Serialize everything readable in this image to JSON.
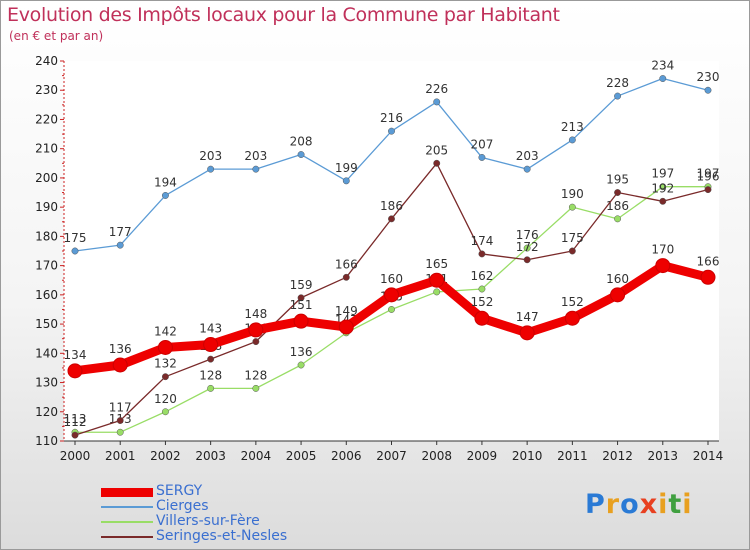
{
  "title": "Evolution des Impôts locaux pour la Commune par Habitant",
  "subtitle": "(en € et par an)",
  "logo": {
    "text": "Proxiti",
    "letters": [
      "P",
      "r",
      "o",
      "x",
      "i",
      "t",
      "i"
    ],
    "colors": [
      "#2a7ad5",
      "#e8a020",
      "#2a7ad5",
      "#e84020",
      "#e8a020",
      "#40a040",
      "#e8a020"
    ]
  },
  "chart_data": {
    "type": "line",
    "x": [
      "2000",
      "2001",
      "2002",
      "2003",
      "2004",
      "2005",
      "2006",
      "2007",
      "2008",
      "2009",
      "2010",
      "2011",
      "2012",
      "2013",
      "2014"
    ],
    "ylim": [
      110,
      240
    ],
    "yticks": [
      110,
      120,
      130,
      140,
      150,
      160,
      170,
      180,
      190,
      200,
      210,
      220,
      230,
      240
    ],
    "grid": false,
    "legend_position": "bottom-left",
    "series": [
      {
        "name": "Cierges",
        "color": "#5b9bd5",
        "values": [
          175,
          177,
          194,
          203,
          203,
          208,
          199,
          216,
          226,
          207,
          203,
          213,
          228,
          234,
          230
        ]
      },
      {
        "name": "Villers-sur-Fère",
        "color": "#99dd66",
        "values": [
          113,
          113,
          120,
          128,
          128,
          136,
          147,
          155,
          161,
          162,
          176,
          190,
          186,
          197,
          197
        ]
      },
      {
        "name": "Seringes-et-Nesles",
        "color": "#7a2a2a",
        "values": [
          112,
          117,
          132,
          138,
          144,
          159,
          166,
          186,
          205,
          174,
          172,
          175,
          195,
          192,
          196
        ]
      },
      {
        "name": "SERGY",
        "color": "#ee0000",
        "values": [
          134,
          136,
          142,
          143,
          148,
          151,
          149,
          160,
          165,
          152,
          147,
          152,
          160,
          170,
          166
        ]
      }
    ]
  },
  "legend": [
    {
      "name": "SERGY",
      "color": "#ee0000"
    },
    {
      "name": "Cierges",
      "color": "#5b9bd5"
    },
    {
      "name": "Villers-sur-Fère",
      "color": "#99dd66"
    },
    {
      "name": "Seringes-et-Nesles",
      "color": "#7a2a2a"
    }
  ]
}
